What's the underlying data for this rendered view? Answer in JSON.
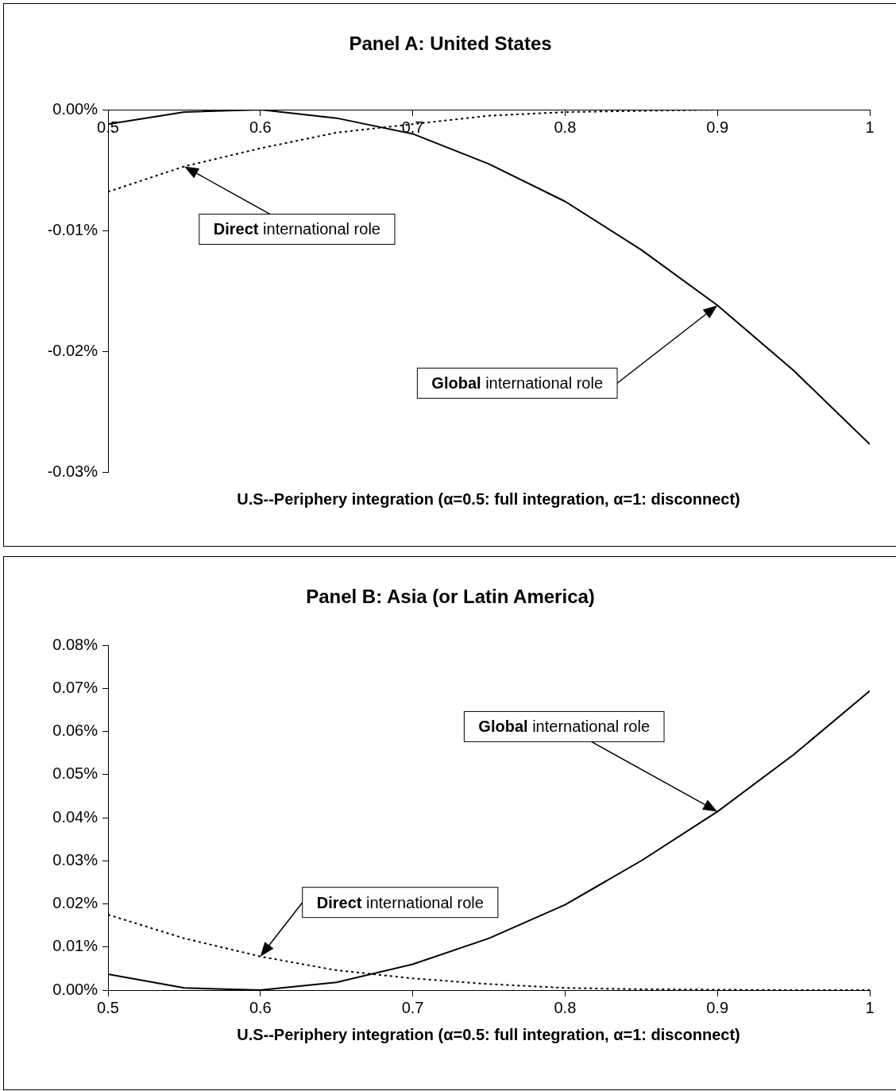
{
  "chart_data": [
    {
      "type": "line",
      "title": "Panel A: United States",
      "xlabel": "U.S--Periphery integration (α=0.5: full integration, α=1: disconnect)",
      "x": [
        0.5,
        0.55,
        0.6,
        0.65,
        0.7,
        0.75,
        0.8,
        0.85,
        0.9,
        0.95,
        1
      ],
      "series": [
        {
          "color": "#000000",
          "line_style": "solid",
          "values": [
            -0.0012,
            -0.0002,
            0,
            -0.0007,
            -0.002,
            -0.0045,
            -0.0076,
            -0.0116,
            -0.0162,
            -0.0216,
            -0.0277
          ]
        },
        {
          "color": "#000000",
          "line_style": "dotted",
          "values": [
            -0.0068,
            -0.0047,
            -0.0032,
            -0.0019,
            -0.0012,
            -0.0005,
            -0.0002,
            -0.0001,
            0,
            0,
            0
          ]
        }
      ],
      "xlim": [
        0.5,
        1
      ],
      "xticks": [
        0.5,
        0.6,
        0.7,
        0.8,
        0.9,
        1
      ],
      "ylim": [
        -0.03,
        0
      ],
      "yticks": [
        {
          "value": 0,
          "label": "0.00%"
        },
        {
          "value": -0.01,
          "label": "-0.01%"
        },
        {
          "value": -0.02,
          "label": "-0.02%"
        },
        {
          "value": -0.03,
          "label": "-0.03%"
        }
      ],
      "annotations": [
        "Direct international role",
        "Global international role"
      ],
      "grid": false,
      "legend": false
    },
    {
      "type": "line",
      "title": "Panel B: Asia (or Latin America)",
      "xlabel": "U.S--Periphery integration (α=0.5: full integration, α=1: disconnect)",
      "x": [
        0.5,
        0.55,
        0.6,
        0.65,
        0.7,
        0.75,
        0.8,
        0.85,
        0.9,
        0.95,
        1
      ],
      "series": [
        {
          "color": "#000000",
          "line_style": "solid",
          "values": [
            0.0037,
            0.0005,
            0,
            0.0018,
            0.006,
            0.012,
            0.0198,
            0.03,
            0.0414,
            0.0546,
            0.0694
          ]
        },
        {
          "color": "#000000",
          "line_style": "dotted",
          "values": [
            0.0175,
            0.012,
            0.0078,
            0.0046,
            0.0027,
            0.0014,
            0.0005,
            0.0002,
            0.0001,
            0,
            0
          ]
        }
      ],
      "xlim": [
        0.5,
        1
      ],
      "xticks": [
        0.5,
        0.6,
        0.7,
        0.8,
        0.9,
        1
      ],
      "ylim": [
        0,
        0.08
      ],
      "yticks": [
        {
          "value": 0,
          "label": "0.00%"
        },
        {
          "value": 0.01,
          "label": "0.01%"
        },
        {
          "value": 0.02,
          "label": "0.02%"
        },
        {
          "value": 0.03,
          "label": "0.03%"
        },
        {
          "value": 0.04,
          "label": "0.04%"
        },
        {
          "value": 0.05,
          "label": "0.05%"
        },
        {
          "value": 0.06,
          "label": "0.06%"
        },
        {
          "value": 0.07,
          "label": "0.07%"
        },
        {
          "value": 0.08,
          "label": "0.08%"
        }
      ],
      "annotations": [
        "Direct international role",
        "Global international role"
      ],
      "grid": false,
      "legend": false
    }
  ]
}
